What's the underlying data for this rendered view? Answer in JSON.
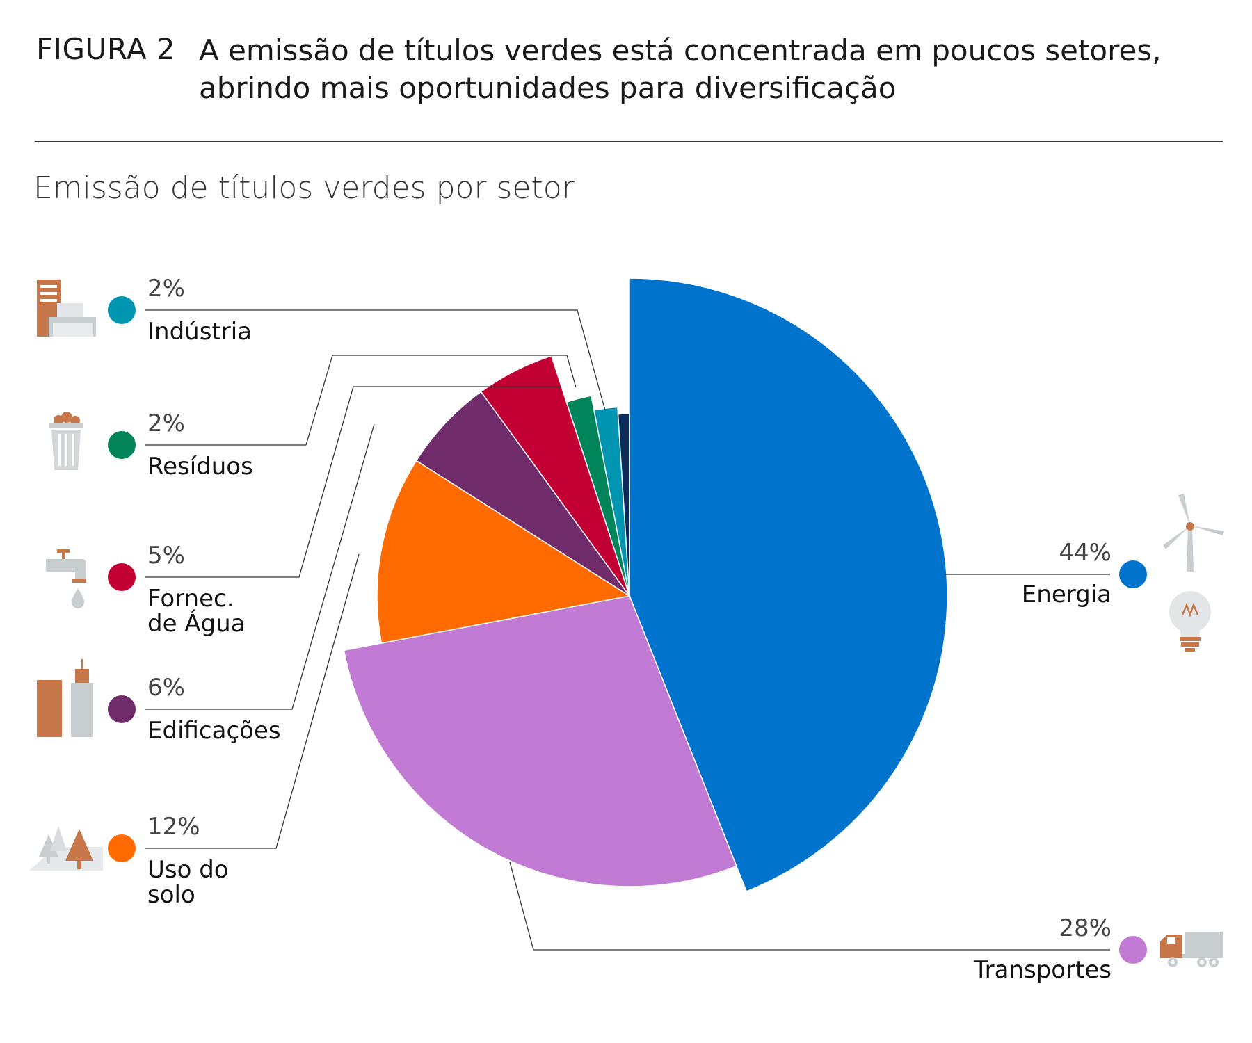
{
  "figure": {
    "label": "FIGURA 2",
    "title": "A emissão de títulos verdes está concentrada em poucos setores, abrindo mais oportunidades para diversificação"
  },
  "chart_data": {
    "type": "pie",
    "subtitle": "Emissão de títulos verdes por setor",
    "legend_placement": "labels-left-and-right",
    "slices": [
      {
        "label": "Energia",
        "value": 44,
        "display": "44%",
        "color": "#0074CC",
        "icon": "wind-turbine-lightbulb-icon"
      },
      {
        "label": "Transportes",
        "value": 28,
        "display": "28%",
        "color": "#C27BD4",
        "icon": "truck-icon"
      },
      {
        "label": "Uso do solo",
        "lines": [
          "Uso do",
          "solo"
        ],
        "value": 12,
        "display": "12%",
        "color": "#FF6B00",
        "icon": "trees-icon"
      },
      {
        "label": "Edificações",
        "value": 6,
        "display": "6%",
        "color": "#702B6B",
        "icon": "buildings-icon"
      },
      {
        "label": "Fornec. de Água",
        "lines": [
          "Fornec.",
          "de Água"
        ],
        "value": 5,
        "display": "5%",
        "color": "#C20033",
        "icon": "water-tap-icon"
      },
      {
        "label": "Resíduos",
        "value": 2,
        "display": "2%",
        "color": "#00845A",
        "icon": "trash-bin-icon"
      },
      {
        "label": "Indústria",
        "value": 2,
        "display": "2%",
        "color": "#0095B0",
        "icon": "factory-icon"
      },
      {
        "value": 1,
        "color": "#0A2B5C"
      }
    ]
  }
}
